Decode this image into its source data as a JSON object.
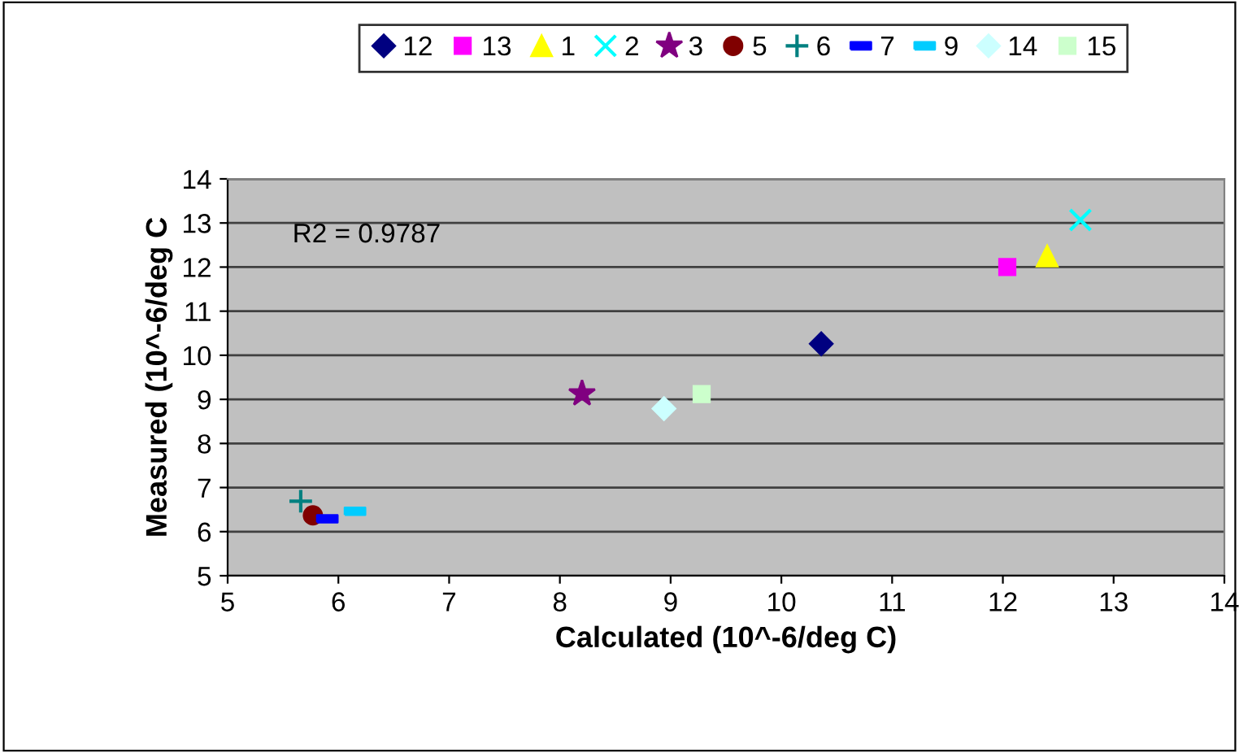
{
  "chart_data": {
    "type": "scatter",
    "xlabel": "Calculated (10^-6/deg C)",
    "ylabel": "Measured (10^-6/deg C",
    "annotations": [
      "R2 = 0.9787"
    ],
    "xlim": [
      5,
      14
    ],
    "xticks": [
      5,
      6,
      7,
      8,
      9,
      10,
      11,
      12,
      13,
      14
    ],
    "ylim": [
      5,
      14
    ],
    "yticks": [
      5,
      6,
      7,
      8,
      9,
      10,
      11,
      12,
      13,
      14
    ],
    "grid": "y",
    "legend": "top",
    "series": [
      {
        "name": "12",
        "color": "#000080",
        "marker": "diamond",
        "x": [
          10.36
        ],
        "values": [
          10.26
        ]
      },
      {
        "name": "13",
        "color": "#ff00ff",
        "marker": "square",
        "x": [
          12.04
        ],
        "values": [
          12.0
        ]
      },
      {
        "name": "1",
        "color": "#ffff00",
        "marker": "triangle",
        "x": [
          12.4
        ],
        "values": [
          12.25
        ]
      },
      {
        "name": "2",
        "color": "#00ffff",
        "marker": "x",
        "x": [
          12.7
        ],
        "values": [
          13.07
        ]
      },
      {
        "name": "3",
        "color": "#800080",
        "marker": "star",
        "x": [
          8.2
        ],
        "values": [
          9.13
        ]
      },
      {
        "name": "5",
        "color": "#800000",
        "marker": "circle",
        "x": [
          5.77
        ],
        "values": [
          6.37
        ]
      },
      {
        "name": "6",
        "color": "#008080",
        "marker": "cross",
        "x": [
          5.66
        ],
        "values": [
          6.69
        ]
      },
      {
        "name": "7",
        "color": "#0000ff",
        "x": [
          5.9
        ],
        "values": [
          6.29
        ]
      },
      {
        "name": "9",
        "color": "#00ccff",
        "x": [
          6.15
        ],
        "values": [
          6.46
        ]
      },
      {
        "name": "14",
        "color": "#ccffff",
        "marker": "diamond",
        "x": [
          8.94
        ],
        "values": [
          8.79
        ]
      },
      {
        "name": "15",
        "color": "#ccffcc",
        "marker": "square",
        "x": [
          9.28
        ],
        "values": [
          9.12
        ]
      }
    ]
  }
}
